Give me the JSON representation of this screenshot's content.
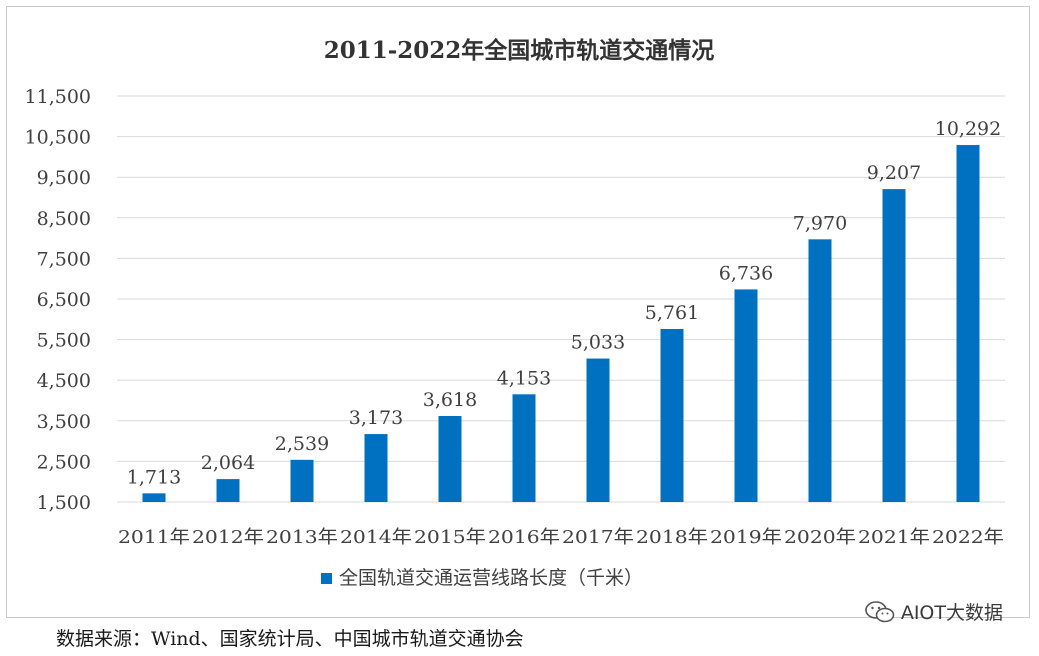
{
  "chart_data": {
    "type": "bar",
    "title": "2011-2022年全国城市轨道交通情况",
    "categories": [
      "2011年",
      "2012年",
      "2013年",
      "2014年",
      "2015年",
      "2016年",
      "2017年",
      "2018年",
      "2019年",
      "2020年",
      "2021年",
      "2022年"
    ],
    "series": [
      {
        "name": "全国轨道交通运营线路长度（千米）",
        "values": [
          1713,
          2064,
          2539,
          3173,
          3618,
          4153,
          5033,
          5761,
          6736,
          7970,
          9207,
          10292
        ],
        "labels": [
          "1,713",
          "2,064",
          "2,539",
          "3,173",
          "3,618",
          "4,153",
          "5,033",
          "5,761",
          "6,736",
          "7,970",
          "9,207",
          "10,292"
        ],
        "color": "#0070c0"
      }
    ],
    "yticks": [
      "1,500",
      "2,500",
      "3,500",
      "4,500",
      "5,500",
      "6,500",
      "7,500",
      "8,500",
      "9,500",
      "10,500",
      "11,500"
    ],
    "ylim": [
      1500,
      11500
    ],
    "grid": true,
    "legend_position": "bottom"
  },
  "source_note": "数据来源：Wind、国家统计局、中国城市轨道交通协会",
  "watermark": {
    "text": "AIOT大数据",
    "icon": "wechat-icon"
  }
}
